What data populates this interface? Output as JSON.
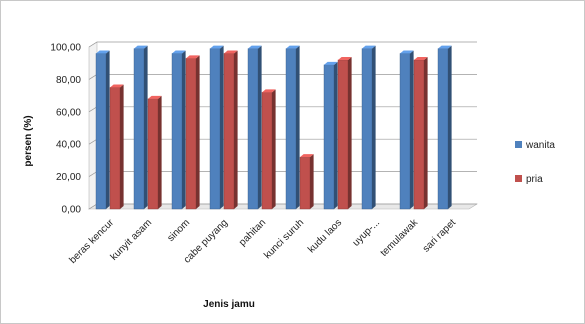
{
  "chart_data": {
    "type": "bar",
    "style": "3d-clustered-column",
    "categories": [
      "beras kencur",
      "kunyit asam",
      "sinom",
      "cabe puyang",
      "pahitan",
      "kunci suruh",
      "kudu laos",
      "uyup-...",
      "temulawak",
      "sari rapet"
    ],
    "series": [
      {
        "name": "wanita",
        "color": "#4f81bd",
        "values": [
          96,
          99,
          96,
          99,
          99,
          99,
          89,
          99,
          96,
          99
        ]
      },
      {
        "name": "pria",
        "color": "#c0504d",
        "values": [
          75,
          68,
          93,
          96,
          72,
          32,
          92,
          0,
          92,
          0
        ]
      }
    ],
    "xlabel": "Jenis jamu",
    "ylabel": "persen (%)",
    "ylim": [
      0,
      100
    ],
    "yticks": [
      "0,00",
      "20,00",
      "40,00",
      "60,00",
      "80,00",
      "100,00"
    ],
    "grid": true,
    "legend_position": "right"
  }
}
